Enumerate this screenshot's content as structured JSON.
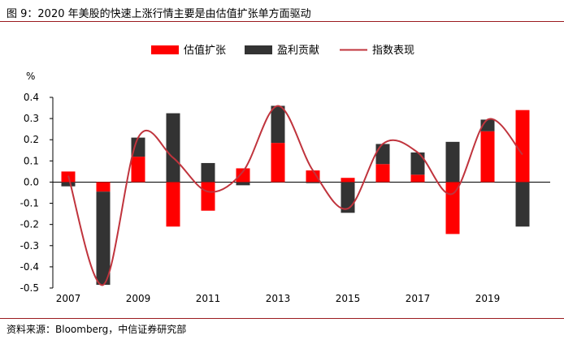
{
  "title": "图 9：2020 年美股的快速上涨行情主要是由估值扩张单方面驱动",
  "source": "资料来源：Bloomberg，中信证券研究部",
  "chart_data": {
    "type": "bar",
    "stacked": true,
    "ylabel": "%",
    "ylim": [
      -0.5,
      0.4
    ],
    "yticks": [
      "0.4",
      "0.3",
      "0.2",
      "0.1",
      "0.0",
      "-0.1",
      "-0.2",
      "-0.3",
      "-0.4",
      "-0.5"
    ],
    "xticks": [
      "2007",
      "2009",
      "2011",
      "2013",
      "2015",
      "2017",
      "2019"
    ],
    "legend_position": "top",
    "colors": {
      "valuation": "#ff0000",
      "earnings": "#333333",
      "index": "#c0343d"
    },
    "categories": [
      2007,
      2008,
      2009,
      2010,
      2011,
      2012,
      2013,
      2014,
      2015,
      2016,
      2017,
      2018,
      2019,
      2020
    ],
    "series": [
      {
        "name": "估值扩张",
        "type": "bar",
        "values": [
          0.05,
          -0.045,
          0.12,
          -0.21,
          -0.135,
          0.065,
          0.185,
          0.055,
          0.02,
          0.085,
          0.035,
          -0.245,
          0.24,
          0.34
        ]
      },
      {
        "name": "盈利贡献",
        "type": "bar",
        "values": [
          -0.02,
          -0.44,
          0.09,
          0.325,
          0.09,
          -0.015,
          0.175,
          -0.005,
          -0.145,
          0.095,
          0.105,
          0.19,
          0.055,
          -0.21
        ]
      },
      {
        "name": "指数表现",
        "type": "line",
        "values": [
          0.03,
          -0.485,
          0.21,
          0.115,
          -0.045,
          0.05,
          0.36,
          0.055,
          -0.125,
          0.18,
          0.14,
          -0.055,
          0.295,
          0.13
        ]
      }
    ]
  }
}
